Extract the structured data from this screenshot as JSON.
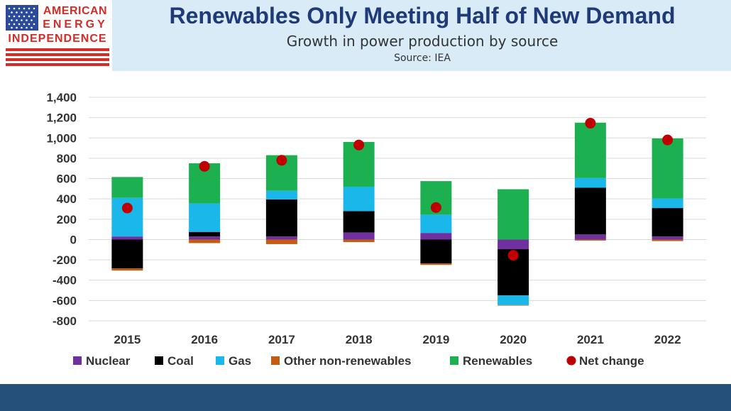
{
  "header": {
    "logo_line1": "AMERICAN",
    "logo_line2": "ENERGY",
    "logo_line3": "INDEPENDENCE",
    "title": "Renewables Only Meeting Half of New Demand",
    "subtitle": "Growth in power production by source",
    "source": "Source: IEA"
  },
  "colors": {
    "header_bg": "#d9ebf7",
    "title": "#1f3a78",
    "logo_red": "#d62b27",
    "footer": "#245079",
    "nuclear": "#7030a0",
    "coal": "#000000",
    "gas": "#1ab7ea",
    "other": "#c55a11",
    "renewables": "#1cb050",
    "net": "#c00000"
  },
  "chart_data": {
    "type": "bar",
    "stacked": true,
    "categories": [
      "2015",
      "2016",
      "2017",
      "2018",
      "2019",
      "2020",
      "2021",
      "2022"
    ],
    "series": [
      {
        "name": "Nuclear",
        "color": "#7030a0",
        "values": [
          30,
          30,
          30,
          70,
          65,
          -95,
          50,
          30
        ]
      },
      {
        "name": "Coal",
        "color": "#000000",
        "values": [
          -285,
          45,
          365,
          210,
          -235,
          -455,
          460,
          280
        ]
      },
      {
        "name": "Gas",
        "color": "#1ab7ea",
        "values": [
          380,
          280,
          85,
          240,
          180,
          -95,
          95,
          95
        ]
      },
      {
        "name": "Other non-renewables",
        "color": "#c55a11",
        "values": [
          -20,
          -35,
          -45,
          -25,
          -15,
          -5,
          -10,
          -15
        ]
      },
      {
        "name": "Renewables",
        "color": "#1cb050",
        "values": [
          205,
          395,
          350,
          440,
          330,
          495,
          545,
          590
        ]
      }
    ],
    "net_change": {
      "name": "Net change",
      "color": "#c00000",
      "values": [
        310,
        720,
        780,
        930,
        315,
        -155,
        1145,
        980
      ]
    },
    "ylim": [
      -800,
      1400
    ],
    "yticks": [
      "1,400",
      "1,200",
      "1,000",
      "800",
      "600",
      "400",
      "200",
      "0",
      "-200",
      "-400",
      "-600",
      "-800"
    ],
    "grid": true,
    "legend_position": "bottom",
    "legend": [
      "Nuclear",
      "Coal",
      "Gas",
      "Other non-renewables",
      "Renewables",
      "Net change"
    ],
    "title": "Renewables Only Meeting Half of New Demand",
    "xlabel": "",
    "ylabel": ""
  }
}
